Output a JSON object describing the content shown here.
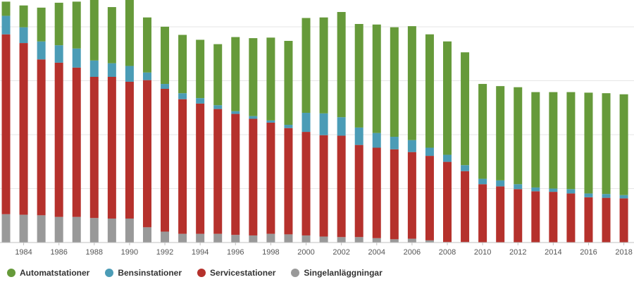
{
  "chart_data": {
    "type": "bar",
    "stacked": true,
    "x": [
      1983,
      1984,
      1985,
      1986,
      1987,
      1988,
      1989,
      1990,
      1991,
      1992,
      1993,
      1994,
      1995,
      1996,
      1997,
      1998,
      1999,
      2000,
      2001,
      2002,
      2003,
      2004,
      2005,
      2006,
      2007,
      2008,
      2009,
      2010,
      2011,
      2012,
      2013,
      2014,
      2015,
      2016,
      2017,
      2018
    ],
    "xticks": [
      "1984",
      "1986",
      "1988",
      "1990",
      "1992",
      "1994",
      "1996",
      "1998",
      "2000",
      "2002",
      "2004",
      "2006",
      "2008",
      "2010",
      "2012",
      "2014",
      "2016",
      "2018"
    ],
    "series": [
      {
        "name": "Singelanläggningar",
        "color": "#999999",
        "values": [
          520,
          510,
          500,
          470,
          470,
          450,
          440,
          440,
          280,
          200,
          160,
          160,
          160,
          140,
          130,
          160,
          150,
          130,
          110,
          100,
          100,
          80,
          60,
          70,
          40,
          10,
          10,
          0,
          0,
          0,
          0,
          0,
          0,
          0,
          0,
          0
        ]
      },
      {
        "name": "Servicestationer",
        "color": "#b5312c",
        "values": [
          3300,
          3150,
          2860,
          2830,
          2740,
          2590,
          2600,
          2510,
          2700,
          2620,
          2470,
          2390,
          2290,
          2220,
          2140,
          2040,
          1950,
          1900,
          1860,
          1860,
          1690,
          1660,
          1650,
          1590,
          1550,
          1470,
          1300,
          1070,
          1030,
          980,
          940,
          930,
          900,
          830,
          820,
          810
        ]
      },
      {
        "name": "Bensinstationer",
        "color": "#4b9cb6",
        "values": [
          340,
          290,
          330,
          320,
          350,
          300,
          250,
          290,
          140,
          90,
          110,
          100,
          70,
          50,
          50,
          40,
          60,
          350,
          400,
          340,
          320,
          270,
          230,
          220,
          150,
          130,
          110,
          100,
          110,
          90,
          70,
          60,
          80,
          70,
          70,
          60
        ]
      },
      {
        "name": "Automatstationer",
        "color": "#669a3a",
        "values": [
          260,
          400,
          620,
          780,
          860,
          1250,
          1030,
          1300,
          1010,
          1050,
          1070,
          1070,
          1120,
          1360,
          1430,
          1520,
          1540,
          1740,
          1760,
          1930,
          1900,
          1990,
          2010,
          2090,
          2080,
          2080,
          2070,
          1740,
          1730,
          1780,
          1750,
          1770,
          1780,
          1850,
          1850,
          1850
        ]
      }
    ],
    "ylim": [
      0,
      4450
    ],
    "grid": true,
    "legend_position": "bottom-left"
  }
}
